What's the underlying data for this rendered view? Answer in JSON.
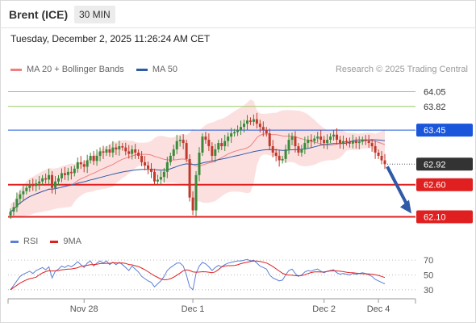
{
  "header": {
    "instrument": "Brent (ICE)",
    "timeframe": "30 MIN",
    "datetime": "Tuesday, December 2, 2025 11:26:24 AM CET"
  },
  "legend": {
    "ma_bb": "MA 20 + Bollinger Bands",
    "ma50": "MA 50",
    "credit": "Research © 2025 Trading Central",
    "rsi": "RSI",
    "ma9": "9MA"
  },
  "colors": {
    "bull": "#3a8a3a",
    "bear": "#c0392b",
    "band_fill": "#fbd5d5",
    "ma20": "#f08080",
    "ma50": "#2f5aa8",
    "rsi": "#5b7fd6",
    "rsi_ma": "#e01f1f",
    "resistance_green": "#9ccc65",
    "pivot_blue": "#1a56db",
    "support_red": "#e02020",
    "last_price": "#333333",
    "arrow": "#2f5aa8"
  },
  "chart_data": [
    {
      "type": "candlestick",
      "title": "Brent (ICE)",
      "timeframe": "30 MIN",
      "ylim": [
        61.93,
        64.27
      ],
      "x_tick_labels": [
        "Nov 28",
        "Dec 1",
        "Dec 2",
        "Dec 4"
      ],
      "x_tick_bar_index": [
        23,
        57,
        98,
        115
      ],
      "bar_count": 118,
      "levels": [
        {
          "value": 64.05,
          "label": "64.05",
          "kind": "resistance",
          "style": "green"
        },
        {
          "value": 63.82,
          "label": "63.82",
          "kind": "resistance",
          "style": "green"
        },
        {
          "value": 63.45,
          "label": "63.45",
          "kind": "pivot",
          "style": "blue"
        },
        {
          "value": 62.92,
          "label": "62.92",
          "kind": "last",
          "style": "dark"
        },
        {
          "value": 62.6,
          "label": "62.60",
          "kind": "support",
          "style": "red"
        },
        {
          "value": 62.1,
          "label": "62.10",
          "kind": "support",
          "style": "red"
        }
      ],
      "closes": [
        62.18,
        62.25,
        62.38,
        62.45,
        62.5,
        62.55,
        62.6,
        62.58,
        62.62,
        62.65,
        62.7,
        62.68,
        62.75,
        62.55,
        62.65,
        62.7,
        62.78,
        62.75,
        62.8,
        62.78,
        62.85,
        62.95,
        62.92,
        62.88,
        62.98,
        63.05,
        62.97,
        63.05,
        63.12,
        63.1,
        63.15,
        63.1,
        63.18,
        63.15,
        63.2,
        63.18,
        63.12,
        63.08,
        63.15,
        63.1,
        63.05,
        62.95,
        62.9,
        62.85,
        62.8,
        62.65,
        62.68,
        62.72,
        62.8,
        62.95,
        63.05,
        63.15,
        63.28,
        63.3,
        63.25,
        63.0,
        62.4,
        62.2,
        62.75,
        63.1,
        63.35,
        63.3,
        63.2,
        63.05,
        63.15,
        63.25,
        63.2,
        63.28,
        63.35,
        63.4,
        63.42,
        63.45,
        63.5,
        63.55,
        63.6,
        63.58,
        63.62,
        63.55,
        63.5,
        63.45,
        63.4,
        63.2,
        63.1,
        63.05,
        62.98,
        63.0,
        63.15,
        63.3,
        63.35,
        63.2,
        63.1,
        63.15,
        63.25,
        63.3,
        63.28,
        63.32,
        63.35,
        63.3,
        63.25,
        63.3,
        63.35,
        63.38,
        63.3,
        63.25,
        63.28,
        63.26,
        63.24,
        63.28,
        63.25,
        63.27,
        63.3,
        63.28,
        63.25,
        63.2,
        63.1,
        63.05,
        62.98,
        62.92
      ],
      "forecast": {
        "from": 62.92,
        "to": 62.1
      }
    },
    {
      "type": "line",
      "series": [
        {
          "name": "RSI",
          "values": [
            30,
            36,
            42,
            48,
            51,
            53,
            55,
            52,
            56,
            58,
            60,
            57,
            61,
            46,
            55,
            58,
            62,
            60,
            63,
            61,
            64,
            68,
            64,
            60,
            66,
            69,
            62,
            66,
            69,
            66,
            69,
            64,
            67,
            64,
            67,
            64,
            60,
            56,
            62,
            58,
            54,
            48,
            45,
            42,
            40,
            34,
            38,
            42,
            48,
            56,
            60,
            63,
            66,
            66,
            62,
            50,
            34,
            30,
            52,
            62,
            67,
            65,
            61,
            56,
            60,
            63,
            61,
            64,
            66,
            67,
            68,
            69,
            69,
            70,
            71,
            69,
            70,
            66,
            62,
            60,
            58,
            50,
            46,
            44,
            42,
            43,
            50,
            56,
            58,
            52,
            48,
            50,
            54,
            56,
            55,
            57,
            58,
            55,
            53,
            55,
            56,
            57,
            53,
            51,
            52,
            51,
            50,
            52,
            51,
            52,
            53,
            52,
            50,
            48,
            44,
            42,
            40,
            38
          ]
        },
        {
          "name": "9MA"
        }
      ],
      "y_tick_labels": [
        "70",
        "50",
        "30"
      ],
      "ylim": [
        20,
        80
      ]
    }
  ]
}
